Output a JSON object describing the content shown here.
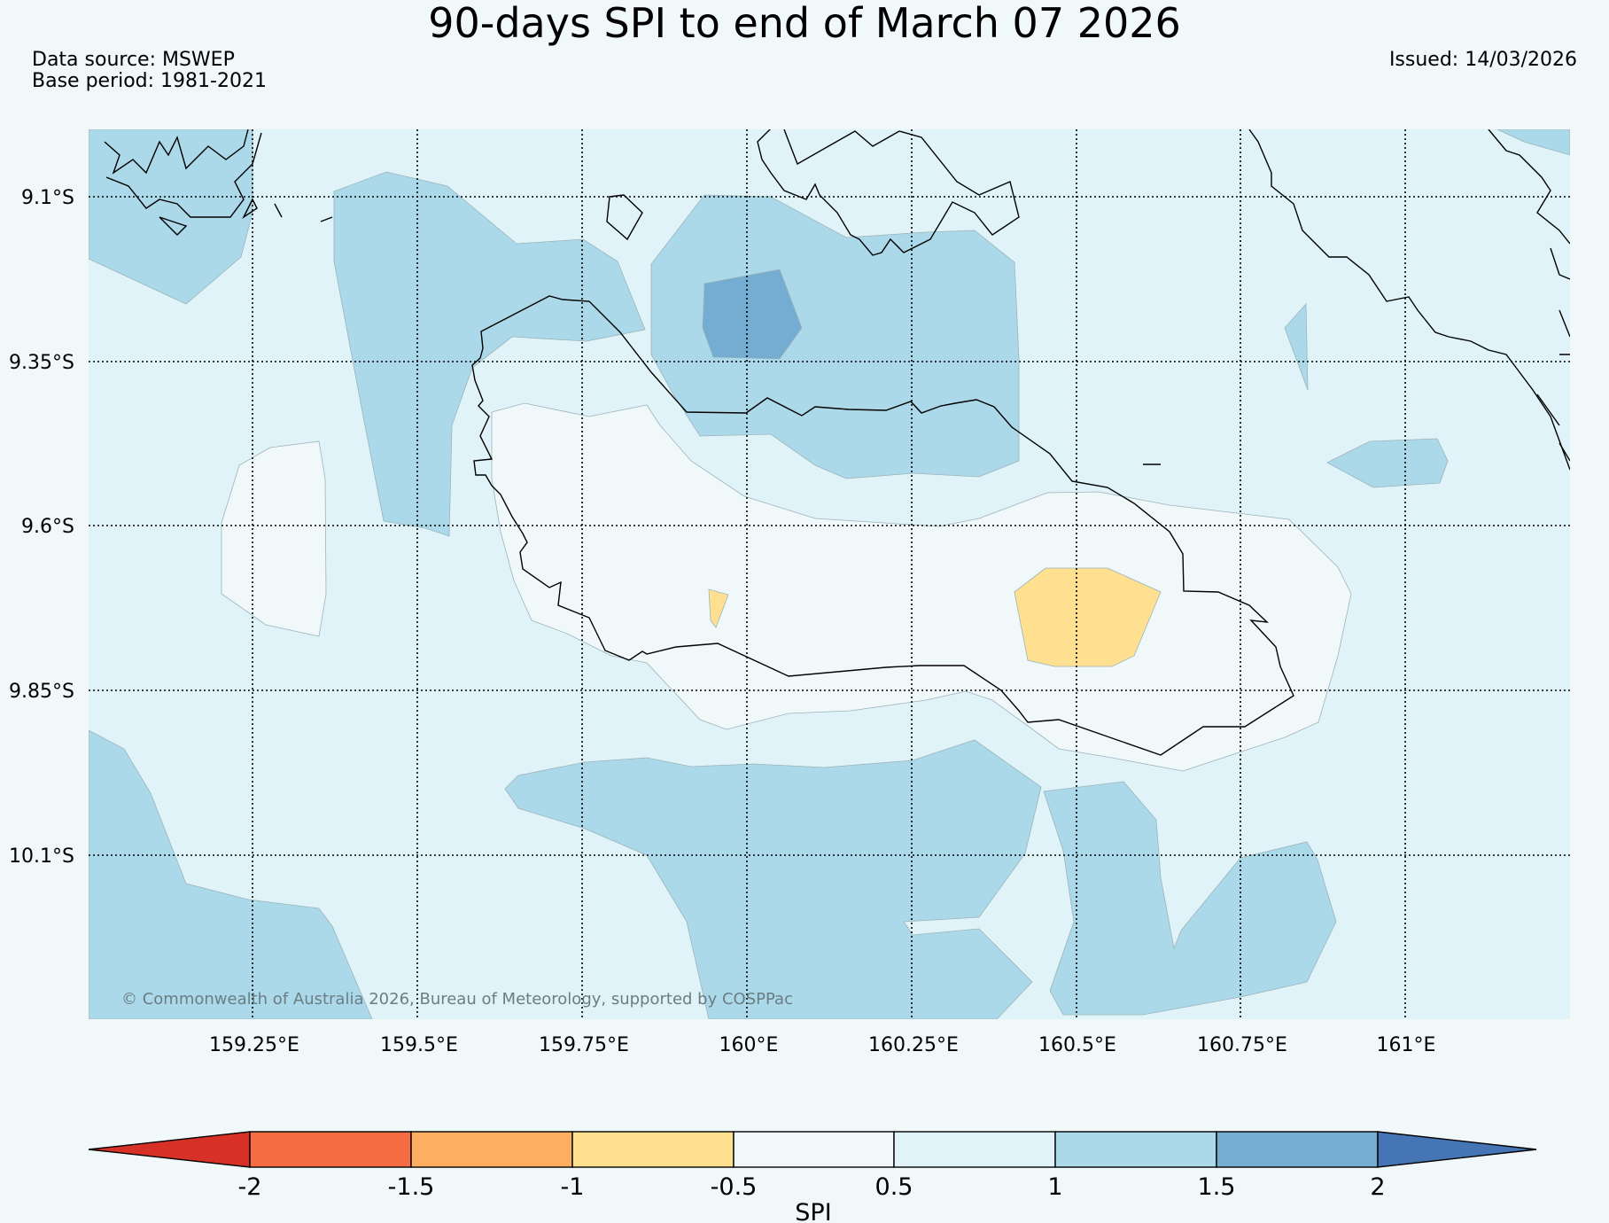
{
  "title": "90-days SPI to end of March 07 2026",
  "data_source": "Data source: MSWEP",
  "base_period": "Base period: 1981-2021",
  "issued": "Issued: 14/03/2026",
  "copyright": "© Commonwealth of Australia 2026, Bureau of Meteorology, supported by COSPPac",
  "map": {
    "lat_labels": [
      "9.1°S",
      "9.35°S",
      "9.6°S",
      "9.85°S",
      "10.1°S"
    ],
    "lon_labels": [
      "159.25°E",
      "159.5°E",
      "159.75°E",
      "160°E",
      "160.25°E",
      "160.5°E",
      "160.75°E",
      "161°E"
    ],
    "grid": "dotted",
    "background_class": "0.5 to 1"
  },
  "colorbar": {
    "label": "SPI",
    "ticks": [
      "-2",
      "-1.5",
      "-1",
      "-0.5",
      "0.5",
      "1",
      "1.5",
      "2"
    ],
    "colors": {
      "below_-2": "#d73027",
      "-2_-1.5": "#f46d43",
      "-1.5_-1": "#fdae61",
      "-1_-0.5": "#fee090",
      "-0.5_0.5": "#f0f8fa",
      "0.5_1": "#e0f3f8",
      "1_1.5": "#abd9e9",
      "1.5_2": "#74add1",
      "above_2": "#4575b4"
    }
  }
}
